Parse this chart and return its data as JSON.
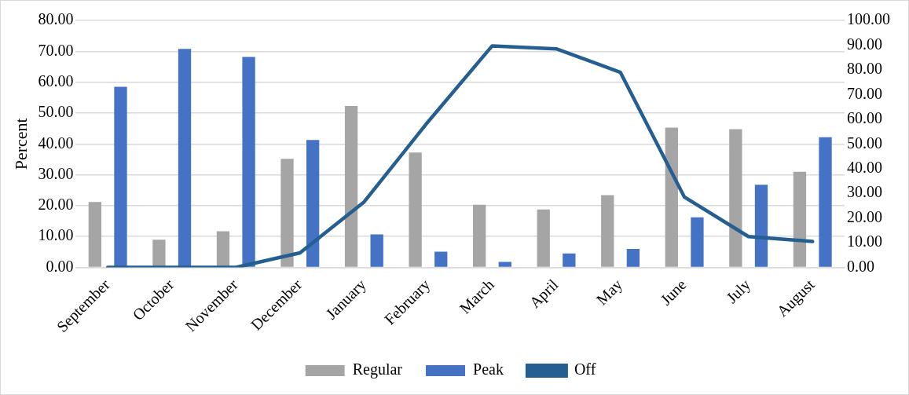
{
  "chart_data": {
    "type": "bar",
    "ylabel": "Percent",
    "categories": [
      "September",
      "October",
      "November",
      "December",
      "January",
      "February",
      "March",
      "April",
      "May",
      "June",
      "July",
      "August"
    ],
    "series": [
      {
        "name": "Regular",
        "color": "#a5a5a5",
        "values": [
          21.2,
          9.0,
          11.7,
          35.2,
          52.3,
          37.2,
          20.3,
          18.8,
          23.4,
          45.3,
          44.8,
          31.0
        ]
      },
      {
        "name": "Peak",
        "color": "#4472c4",
        "values": [
          58.5,
          70.8,
          68.2,
          41.3,
          10.7,
          5.1,
          1.8,
          4.5,
          6.0,
          16.2,
          26.8,
          42.2
        ]
      },
      {
        "name": "Off",
        "type": "line",
        "axis": "y2",
        "color": "#255e91",
        "values": [
          0,
          0,
          0,
          5.9,
          26.5,
          59,
          89.7,
          88.5,
          79,
          28.5,
          12.5,
          10.5
        ]
      }
    ],
    "ylim": [
      0,
      80
    ],
    "yticks": [
      {
        "value": 0,
        "label": "0.00"
      },
      {
        "value": 10,
        "label": "10.00"
      },
      {
        "value": 20,
        "label": "20.00"
      },
      {
        "value": 30,
        "label": "30.00"
      },
      {
        "value": 40,
        "label": "40.00"
      },
      {
        "value": 50,
        "label": "50.00"
      },
      {
        "value": 60,
        "label": "60.00"
      },
      {
        "value": 70,
        "label": "70.00"
      },
      {
        "value": 80,
        "label": "80.00"
      }
    ],
    "y2lim": [
      0,
      100
    ],
    "y2ticks": [
      {
        "value": 0,
        "label": "0.00"
      },
      {
        "value": 10,
        "label": "10.00"
      },
      {
        "value": 20,
        "label": "20.00"
      },
      {
        "value": 30,
        "label": "30.00"
      },
      {
        "value": 40,
        "label": "40.00"
      },
      {
        "value": 50,
        "label": "50.00"
      },
      {
        "value": 60,
        "label": "60.00"
      },
      {
        "value": 70,
        "label": "70.00"
      },
      {
        "value": 80,
        "label": "80.00"
      },
      {
        "value": 90,
        "label": "90.00"
      },
      {
        "value": 100,
        "label": "100.00"
      }
    ],
    "grid": "y",
    "legend": "bottom",
    "marker": "none",
    "line_style": "solid"
  }
}
